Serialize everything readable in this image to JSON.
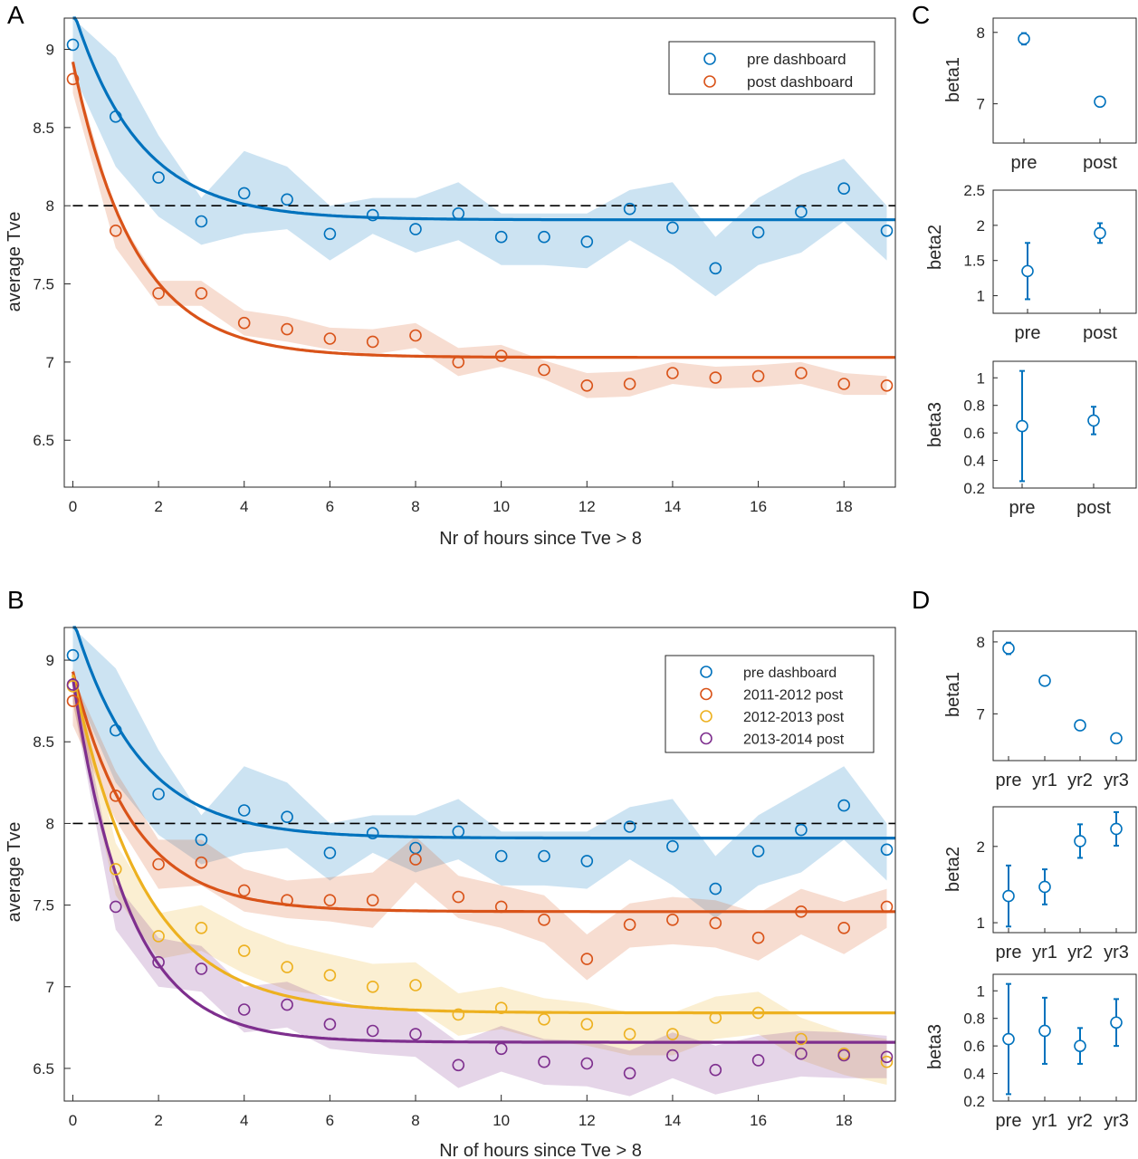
{
  "panels": {
    "A": {
      "letter": "A",
      "xlabel": "Nr of hours since Tve > 8",
      "ylabel": "average Tve",
      "xticks": [
        0,
        2,
        4,
        6,
        8,
        10,
        12,
        14,
        16,
        18
      ],
      "yticks": [
        6.5,
        7,
        7.5,
        8,
        8.5,
        9
      ],
      "legend": [
        "pre dashboard",
        "post dashboard"
      ]
    },
    "B": {
      "letter": "B",
      "xlabel": "Nr of hours since Tve > 8",
      "ylabel": "average Tve",
      "xticks": [
        0,
        2,
        4,
        6,
        8,
        10,
        12,
        14,
        16,
        18
      ],
      "yticks": [
        6.5,
        7,
        7.5,
        8,
        8.5,
        9
      ],
      "legend": [
        "pre dashboard",
        "2011-2012 post",
        "2012-2013 post",
        "2013-2014 post"
      ]
    },
    "C": {
      "letter": "C",
      "categories": [
        "pre",
        "post"
      ],
      "beta1": {
        "label": "beta1",
        "yticks": [
          "7",
          "8"
        ]
      },
      "beta2": {
        "label": "beta2",
        "yticks": [
          "1",
          "1.5",
          "2",
          "2.5"
        ]
      },
      "beta3": {
        "label": "beta3",
        "yticks": [
          "0.2",
          "0.4",
          "0.6",
          "0.8",
          "1"
        ]
      }
    },
    "D": {
      "letter": "D",
      "categories": [
        "pre",
        "yr1",
        "yr2",
        "yr3"
      ],
      "beta1": {
        "label": "beta1",
        "yticks": [
          "7",
          "8"
        ]
      },
      "beta2": {
        "label": "beta2",
        "yticks": [
          "1",
          "2"
        ]
      },
      "beta3": {
        "label": "beta3",
        "yticks": [
          "0.2",
          "0.4",
          "0.6",
          "0.8",
          "1"
        ]
      }
    }
  },
  "colors": {
    "pre": "#0072BD",
    "post": "#D95319",
    "y2012_2013": "#EDB120",
    "y2013_2014": "#7E2F8E",
    "dashed": "#000000"
  },
  "chart_data": [
    {
      "id": "A",
      "type": "scatter",
      "xlabel": "Nr of hours since Tve > 8",
      "ylabel": "average Tve",
      "xlim": [
        -0.2,
        19.2
      ],
      "ylim": [
        6.2,
        9.2
      ],
      "reference_line_y": 8,
      "legend_position": "top-right",
      "x": [
        0,
        1,
        2,
        3,
        4,
        5,
        6,
        7,
        8,
        9,
        10,
        11,
        12,
        13,
        14,
        15,
        16,
        17,
        18,
        19
      ],
      "series": [
        {
          "name": "pre dashboard",
          "color": "#0072BD",
          "points": [
            9.03,
            8.57,
            8.18,
            7.9,
            8.08,
            8.04,
            7.82,
            7.94,
            7.85,
            7.95,
            7.8,
            7.8,
            7.77,
            7.98,
            7.86,
            7.6,
            7.83,
            7.96,
            8.11,
            7.84
          ],
          "band_upper": [
            9.2,
            8.95,
            8.45,
            8.05,
            8.35,
            8.25,
            8.0,
            8.05,
            8.05,
            8.15,
            7.95,
            7.95,
            7.95,
            8.1,
            8.15,
            7.8,
            8.05,
            8.2,
            8.3,
            8.0
          ],
          "band_lower": [
            8.85,
            8.25,
            7.93,
            7.75,
            7.82,
            7.85,
            7.65,
            7.82,
            7.7,
            7.78,
            7.62,
            7.62,
            7.6,
            7.78,
            7.62,
            7.42,
            7.62,
            7.7,
            7.9,
            7.65
          ],
          "fit": {
            "beta1": 7.91,
            "beta2": 1.35,
            "beta3": 0.65
          }
        },
        {
          "name": "post dashboard",
          "color": "#D95319",
          "points": [
            8.81,
            7.84,
            7.44,
            7.44,
            7.25,
            7.21,
            7.15,
            7.13,
            7.17,
            7.0,
            7.04,
            6.95,
            6.85,
            6.86,
            6.93,
            6.9,
            6.91,
            6.93,
            6.86,
            6.85
          ],
          "band_upper": [
            8.9,
            7.95,
            7.52,
            7.52,
            7.33,
            7.29,
            7.22,
            7.21,
            7.25,
            7.09,
            7.11,
            7.01,
            6.93,
            6.94,
            7.0,
            6.97,
            6.98,
            7.0,
            6.93,
            6.91
          ],
          "band_lower": [
            8.72,
            7.73,
            7.36,
            7.36,
            7.17,
            7.13,
            7.08,
            7.05,
            7.09,
            6.91,
            6.97,
            6.89,
            6.77,
            6.78,
            6.86,
            6.83,
            6.84,
            6.86,
            6.79,
            6.79
          ],
          "fit": {
            "beta1": 7.03,
            "beta2": 1.89,
            "beta3": 0.69
          }
        }
      ]
    },
    {
      "id": "B",
      "type": "scatter",
      "xlabel": "Nr of hours since Tve > 8",
      "ylabel": "average Tve",
      "xlim": [
        -0.2,
        19.2
      ],
      "ylim": [
        6.3,
        9.2
      ],
      "reference_line_y": 8,
      "legend_position": "top-right",
      "x": [
        0,
        1,
        2,
        3,
        4,
        5,
        6,
        7,
        8,
        9,
        10,
        11,
        12,
        13,
        14,
        15,
        16,
        17,
        18,
        19
      ],
      "series": [
        {
          "name": "pre dashboard",
          "color": "#0072BD",
          "points": [
            9.03,
            8.57,
            8.18,
            7.9,
            8.08,
            8.04,
            7.82,
            7.94,
            7.85,
            7.95,
            7.8,
            7.8,
            7.77,
            7.98,
            7.86,
            7.6,
            7.83,
            7.96,
            8.11,
            7.84
          ],
          "band_upper": [
            9.2,
            8.95,
            8.45,
            8.05,
            8.35,
            8.25,
            8.0,
            8.05,
            8.05,
            8.15,
            7.95,
            7.95,
            7.95,
            8.1,
            8.15,
            7.8,
            8.05,
            8.2,
            8.35,
            8.0
          ],
          "band_lower": [
            8.85,
            8.25,
            7.93,
            7.75,
            7.82,
            7.85,
            7.65,
            7.82,
            7.7,
            7.78,
            7.62,
            7.62,
            7.6,
            7.78,
            7.62,
            7.42,
            7.62,
            7.7,
            7.9,
            7.65
          ],
          "fit": {
            "beta1": 7.91,
            "beta2": 1.35,
            "beta3": 0.65
          }
        },
        {
          "name": "2011-2012 post",
          "color": "#D95319",
          "points": [
            8.75,
            8.17,
            7.75,
            7.76,
            7.59,
            7.53,
            7.53,
            7.53,
            7.78,
            7.55,
            7.49,
            7.41,
            7.17,
            7.38,
            7.41,
            7.39,
            7.3,
            7.46,
            7.36,
            7.49
          ],
          "band_upper": [
            8.9,
            8.32,
            7.9,
            7.9,
            7.72,
            7.65,
            7.67,
            7.7,
            7.92,
            7.68,
            7.62,
            7.56,
            7.32,
            7.51,
            7.55,
            7.53,
            7.45,
            7.6,
            7.52,
            7.6
          ],
          "band_lower": [
            8.6,
            8.02,
            7.6,
            7.62,
            7.46,
            7.42,
            7.4,
            7.36,
            7.64,
            7.42,
            7.36,
            7.27,
            7.04,
            7.24,
            7.26,
            7.24,
            7.16,
            7.32,
            7.2,
            7.36
          ],
          "fit": {
            "beta1": 7.46,
            "beta2": 1.47,
            "beta3": 0.71
          }
        },
        {
          "name": "2012-2013 post",
          "color": "#EDB120",
          "points": [
            8.84,
            7.72,
            7.31,
            7.36,
            7.22,
            7.12,
            7.07,
            7.0,
            7.01,
            6.83,
            6.87,
            6.8,
            6.77,
            6.71,
            6.71,
            6.81,
            6.84,
            6.68,
            6.59,
            6.54
          ],
          "band_upper": [
            8.95,
            7.88,
            7.45,
            7.5,
            7.36,
            7.26,
            7.2,
            7.14,
            7.15,
            6.96,
            7.0,
            6.93,
            6.9,
            6.84,
            6.84,
            6.94,
            6.97,
            6.81,
            6.72,
            6.68
          ],
          "band_lower": [
            8.73,
            7.56,
            7.17,
            7.22,
            7.08,
            6.98,
            6.94,
            6.86,
            6.87,
            6.7,
            6.74,
            6.67,
            6.64,
            6.58,
            6.58,
            6.68,
            6.71,
            6.55,
            6.46,
            6.4
          ],
          "fit": {
            "beta1": 6.84,
            "beta2": 2.07,
            "beta3": 0.6
          }
        },
        {
          "name": "2013-2014 post",
          "color": "#7E2F8E",
          "points": [
            8.85,
            7.49,
            7.15,
            7.11,
            6.86,
            6.89,
            6.77,
            6.73,
            6.71,
            6.52,
            6.62,
            6.54,
            6.53,
            6.47,
            6.58,
            6.49,
            6.55,
            6.59,
            6.58,
            6.57
          ],
          "band_upper": [
            8.95,
            7.63,
            7.3,
            7.25,
            7.0,
            7.03,
            6.92,
            6.87,
            6.85,
            6.66,
            6.76,
            6.68,
            6.67,
            6.61,
            6.72,
            6.64,
            6.7,
            6.73,
            6.72,
            6.7
          ],
          "band_lower": [
            8.75,
            7.35,
            7.0,
            6.97,
            6.72,
            6.75,
            6.62,
            6.59,
            6.57,
            6.38,
            6.48,
            6.4,
            6.39,
            6.33,
            6.44,
            6.34,
            6.4,
            6.45,
            6.44,
            6.44
          ],
          "fit": {
            "beta1": 6.66,
            "beta2": 2.23,
            "beta3": 0.77
          }
        }
      ]
    },
    {
      "id": "C-beta1",
      "type": "scatter",
      "ylabel": "beta1",
      "categories": [
        "pre",
        "post"
      ],
      "ylim": [
        6.45,
        8.2
      ],
      "values": [
        7.91,
        7.03
      ],
      "error": [
        0.08,
        0.05
      ]
    },
    {
      "id": "C-beta2",
      "type": "scatter",
      "ylabel": "beta2",
      "categories": [
        "pre",
        "post"
      ],
      "ylim": [
        0.75,
        2.5
      ],
      "values": [
        1.35,
        1.89
      ],
      "error": [
        0.4,
        0.14
      ]
    },
    {
      "id": "C-beta3",
      "type": "scatter",
      "ylabel": "beta3",
      "categories": [
        "pre",
        "post"
      ],
      "ylim": [
        0.2,
        1.12
      ],
      "values": [
        0.65,
        0.69
      ],
      "error": [
        0.4,
        0.1
      ]
    },
    {
      "id": "D-beta1",
      "type": "scatter",
      "ylabel": "beta1",
      "categories": [
        "pre",
        "yr1",
        "yr2",
        "yr3"
      ],
      "ylim": [
        6.35,
        8.15
      ],
      "values": [
        7.91,
        7.46,
        6.84,
        6.66
      ],
      "error": [
        0.08,
        0.05,
        0.05,
        0.05
      ]
    },
    {
      "id": "D-beta2",
      "type": "scatter",
      "ylabel": "beta2",
      "categories": [
        "pre",
        "yr1",
        "yr2",
        "yr3"
      ],
      "ylim": [
        0.87,
        2.52
      ],
      "values": [
        1.35,
        1.47,
        2.07,
        2.23
      ],
      "error": [
        0.4,
        0.23,
        0.22,
        0.22
      ]
    },
    {
      "id": "D-beta3",
      "type": "scatter",
      "ylabel": "beta3",
      "categories": [
        "pre",
        "yr1",
        "yr2",
        "yr3"
      ],
      "ylim": [
        0.2,
        1.12
      ],
      "values": [
        0.65,
        0.71,
        0.6,
        0.77
      ],
      "error": [
        0.4,
        0.24,
        0.13,
        0.17
      ]
    }
  ]
}
